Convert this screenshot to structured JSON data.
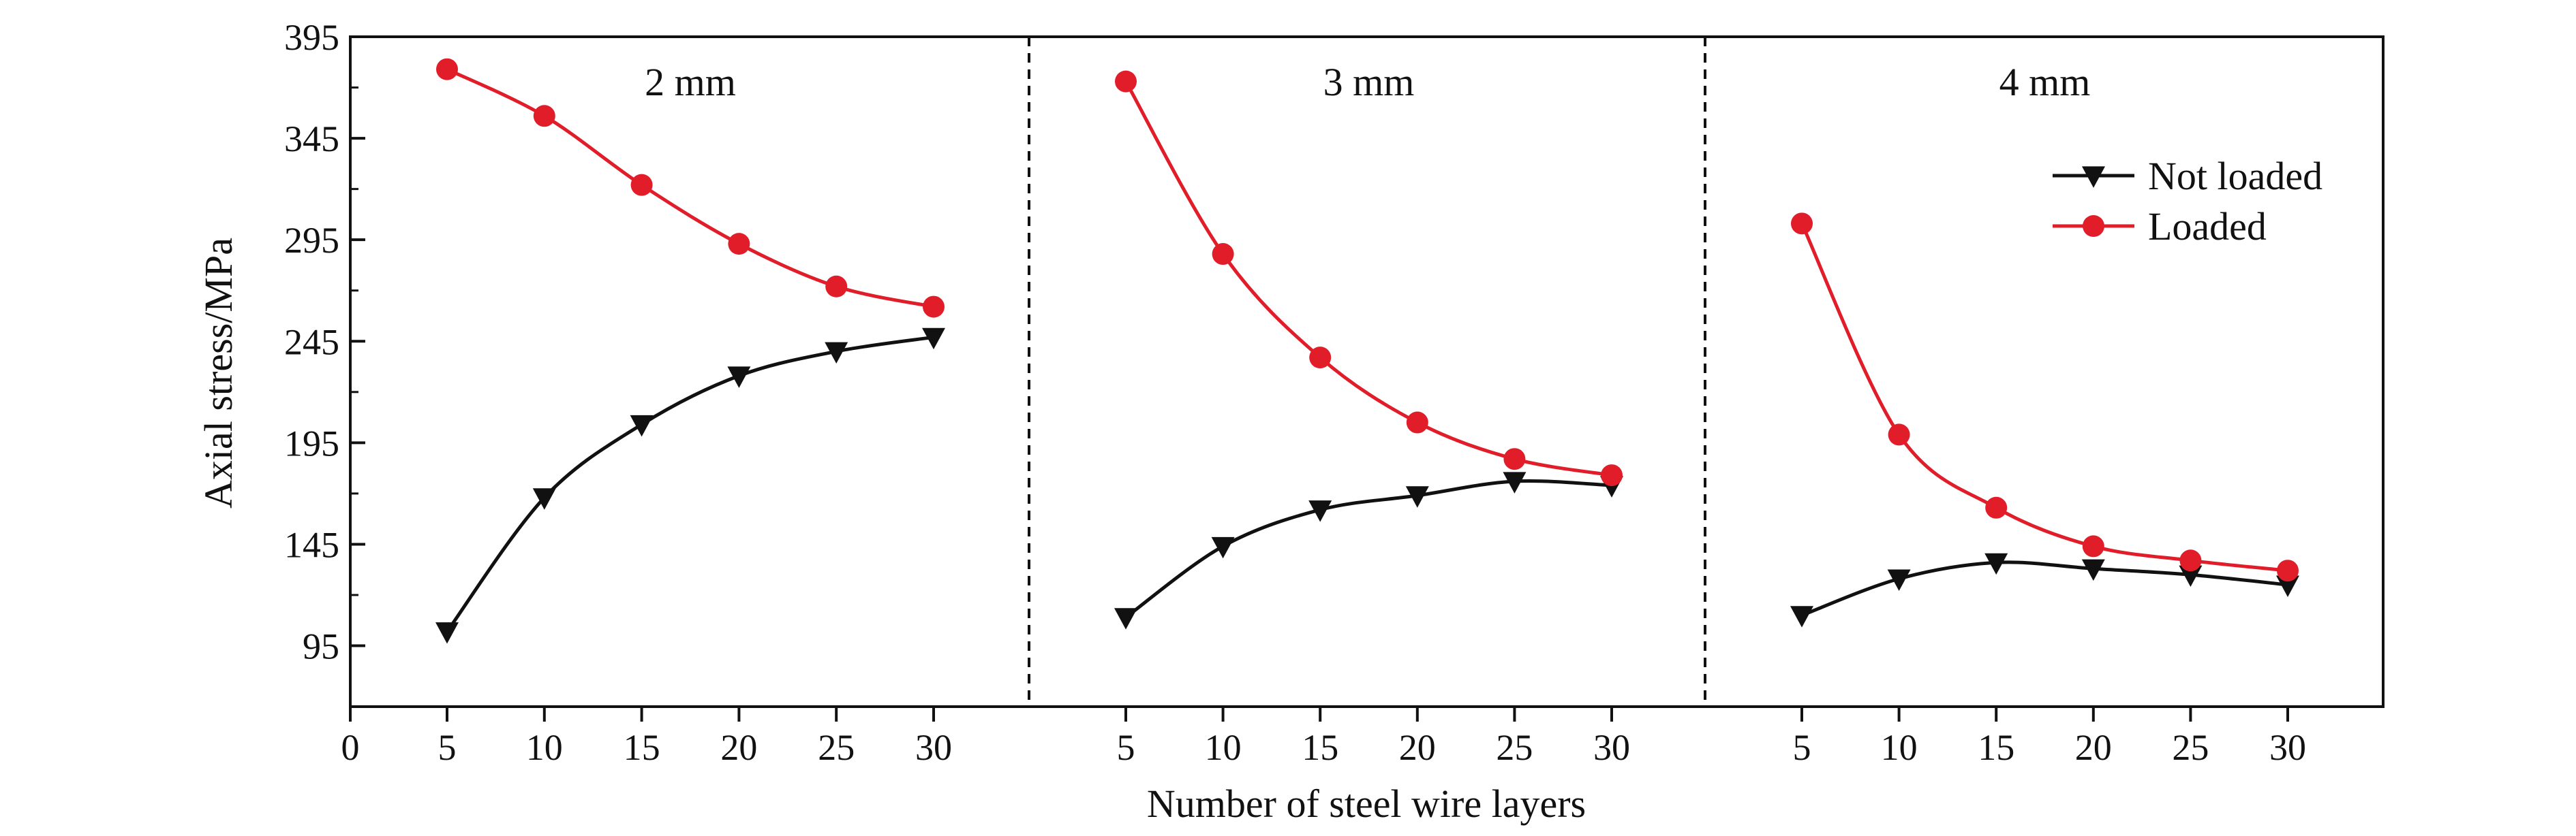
{
  "chart_data": {
    "type": "line",
    "xlabel": "Number of steel wire layers",
    "ylabel": "Axial stress/MPa",
    "ylim": [
      65,
      395
    ],
    "yticks": [
      95,
      145,
      195,
      245,
      295,
      345,
      395
    ],
    "x_origin_label": "0",
    "x": [
      5,
      10,
      15,
      20,
      25,
      30
    ],
    "legend": [
      "Not loaded",
      "Loaded"
    ],
    "legend_position": "top-right",
    "colors": {
      "not_loaded": "#111111",
      "loaded": "#e11d2a"
    },
    "panels": [
      {
        "title": "2 mm",
        "series": [
          {
            "name": "Not loaded",
            "values": [
              102,
              168,
              204,
              228,
              240,
              247
            ]
          },
          {
            "name": "Loaded",
            "values": [
              379,
              356,
              322,
              293,
              272,
              262
            ]
          }
        ]
      },
      {
        "title": "3 mm",
        "series": [
          {
            "name": "Not loaded",
            "values": [
              109,
              144,
              162,
              169,
              176,
              174
            ]
          },
          {
            "name": "Loaded",
            "values": [
              373,
              288,
              237,
              205,
              187,
              179
            ]
          }
        ]
      },
      {
        "title": "4 mm",
        "series": [
          {
            "name": "Not loaded",
            "values": [
              110,
              128,
              136,
              133,
              130,
              125
            ]
          },
          {
            "name": "Loaded",
            "values": [
              303,
              199,
              163,
              144,
              137,
              132
            ]
          }
        ]
      }
    ]
  }
}
